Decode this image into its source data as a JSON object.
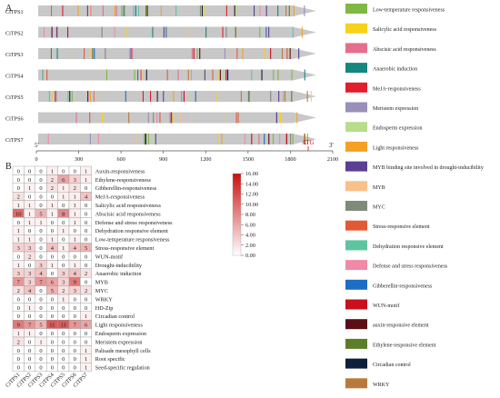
{
  "panel_a_label": "A",
  "panel_b_label": "B",
  "genes": [
    "CiTPS1",
    "CiTPS2",
    "CiTPS3",
    "CiTPS4",
    "CiTPS5",
    "CiTPS6",
    "CiTPS7"
  ],
  "axis": {
    "ticks": [
      "0",
      "300",
      "600",
      "900",
      "1200",
      "1500",
      "1800",
      "2100"
    ],
    "five_prime": "5'",
    "three_prime": "3'",
    "atg": "ATG"
  },
  "legend": [
    {
      "label": "Low-temperature responsiveness",
      "color": "#7fb842"
    },
    {
      "label": "Salicylic acid responsiveness",
      "color": "#f6d21a"
    },
    {
      "label": "Abscisic acid responsiveness",
      "color": "#e66e8c"
    },
    {
      "label": "Anaerobic induction",
      "color": "#16867e"
    },
    {
      "label": "MeJA-responsiveness",
      "color": "#e01e2e"
    },
    {
      "label": "Meristem expression",
      "color": "#9a8fb8"
    },
    {
      "label": "Endosperm expression",
      "color": "#b8dc8c"
    },
    {
      "label": "Light responsiveness",
      "color": "#f4a124"
    },
    {
      "label": "MYB binding site involved in drought-inducibility",
      "color": "#5a3f93"
    },
    {
      "label": "MYB",
      "color": "#f8c08a"
    },
    {
      "label": "MYC",
      "color": "#7f8a79"
    },
    {
      "label": "Stress-responsive element",
      "color": "#e05a38"
    },
    {
      "label": "Dehydration responsive element",
      "color": "#5ec4a0"
    },
    {
      "label": "Defense and stress responsiveness",
      "color": "#f08aa8"
    },
    {
      "label": "Gibberellin-responsiveness",
      "color": "#1d6dc4"
    },
    {
      "label": "WUN-motif",
      "color": "#c8101e"
    },
    {
      "label": "auxin-responsive element",
      "color": "#5c0e16"
    },
    {
      "label": "Ethylene-responsive element",
      "color": "#5d7d2a"
    },
    {
      "label": "Circadian control",
      "color": "#0e1f3a"
    },
    {
      "label": "WRKY",
      "color": "#b87a3c"
    }
  ],
  "heatmap": {
    "rows": [
      "Auxin-responsiveness",
      "Ethylene-responsiveness",
      "Gibberellin-responsiveness",
      "MeJA-responsiveness",
      "Salicylic acid responsiveness",
      "Abscisic acid responsiveness",
      "Defense and stress responsiveness",
      "Dehydration responsive element",
      "Low-temperature responsiveness",
      "Stress-responsive element",
      "WUN-motif",
      "Drought-inducibility",
      "Anaerobic induction",
      "MYB",
      "MYC",
      "WRKY",
      "HD-Zip",
      "Circadian control",
      "Light responsiveness",
      "Endosperm expression",
      "Meristem expression",
      "Palisade mesophyll cells",
      "Root specific",
      "Seed-specific regulation"
    ],
    "values": [
      [
        0,
        0,
        0,
        1,
        0,
        0,
        1
      ],
      [
        0,
        0,
        0,
        2,
        6,
        3,
        1
      ],
      [
        0,
        1,
        0,
        2,
        1,
        2,
        0
      ],
      [
        2,
        0,
        0,
        0,
        1,
        1,
        4
      ],
      [
        1,
        1,
        0,
        1,
        0,
        1,
        0
      ],
      [
        10,
        1,
        5,
        1,
        8,
        1,
        0
      ],
      [
        0,
        1,
        1,
        0,
        0,
        1,
        0
      ],
      [
        1,
        0,
        0,
        0,
        1,
        0,
        0
      ],
      [
        1,
        1,
        0,
        1,
        0,
        1,
        0
      ],
      [
        3,
        3,
        0,
        4,
        1,
        4,
        5
      ],
      [
        0,
        2,
        0,
        0,
        0,
        0,
        0
      ],
      [
        1,
        0,
        3,
        1,
        0,
        1,
        0
      ],
      [
        3,
        3,
        4,
        0,
        3,
        4,
        2
      ],
      [
        7,
        3,
        7,
        6,
        3,
        9,
        0
      ],
      [
        2,
        4,
        0,
        5,
        2,
        3,
        2
      ],
      [
        0,
        0,
        0,
        0,
        1,
        0,
        0
      ],
      [
        0,
        1,
        0,
        0,
        0,
        0,
        0
      ],
      [
        0,
        0,
        0,
        0,
        0,
        0,
        1
      ],
      [
        9,
        7,
        5,
        11,
        11,
        7,
        6
      ],
      [
        1,
        1,
        0,
        0,
        0,
        0,
        0
      ],
      [
        2,
        0,
        1,
        0,
        0,
        0,
        0
      ],
      [
        0,
        0,
        0,
        0,
        0,
        0,
        1
      ],
      [
        0,
        0,
        0,
        0,
        0,
        0,
        1
      ],
      [
        0,
        0,
        0,
        0,
        0,
        0,
        1
      ]
    ],
    "scale_labels": [
      "16.00",
      "14.00",
      "12.00",
      "10.00",
      "8.00",
      "6.00",
      "4.00",
      "2.00",
      "0.00"
    ],
    "scale_max": 16
  }
}
